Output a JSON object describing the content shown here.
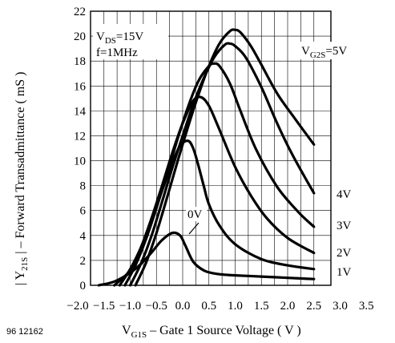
{
  "figure_number": "96 12162",
  "chart_data": {
    "type": "line",
    "xlabel": {
      "main": "V",
      "sub": "G1S",
      "rest": " – Gate 1 Source Voltage ( V )"
    },
    "ylabel": {
      "pre": "| Y",
      "sub": "21S",
      "rest": " | – Forward Transadmittance ( mS )"
    },
    "xlim": [
      -2.0,
      3.5
    ],
    "ylim": [
      0,
      22
    ],
    "xticks": [
      "−2.0",
      "−1.5",
      "−1.0",
      "−0.5",
      "0.0",
      "0.5",
      "1.0",
      "1.5",
      "2.0",
      "2.5",
      "3.0",
      "3.5"
    ],
    "yticks": [
      "0",
      "2",
      "4",
      "6",
      "8",
      "10",
      "12",
      "14",
      "16",
      "18",
      "20",
      "22"
    ],
    "xtick_values": [
      -2.0,
      -1.5,
      -1.0,
      -0.5,
      0.0,
      0.5,
      1.0,
      1.5,
      2.0,
      2.5,
      3.0,
      3.5
    ],
    "ytick_values": [
      0,
      2,
      4,
      6,
      8,
      10,
      12,
      14,
      16,
      18,
      20,
      22
    ],
    "grid": true,
    "line_color": "#000000",
    "conditions": {
      "line1": {
        "main": "V",
        "sub": "DS",
        "rest": "=15V"
      },
      "line2": "f=1MHz"
    },
    "series": [
      {
        "name": "0V",
        "x": [
          -1.6,
          -1.3,
          -1.0,
          -0.8,
          -0.6,
          -0.4,
          -0.2,
          -0.05,
          0.05,
          0.2,
          0.4,
          0.6,
          0.8,
          1.0,
          1.5,
          2.0,
          2.5
        ],
        "y": [
          0,
          0.3,
          1.0,
          1.7,
          2.6,
          3.6,
          4.2,
          4.0,
          3.2,
          1.9,
          1.2,
          0.95,
          0.85,
          0.8,
          0.7,
          0.6,
          0.5
        ]
      },
      {
        "name": "1V",
        "x": [
          -1.3,
          -1.0,
          -0.8,
          -0.6,
          -0.4,
          -0.2,
          -0.05,
          0.1,
          0.2,
          0.3,
          0.4,
          0.5,
          0.7,
          1.0,
          1.5,
          2.0,
          2.5
        ],
        "y": [
          0,
          1.2,
          2.8,
          5.0,
          7.5,
          9.8,
          11.2,
          11.6,
          11.0,
          9.6,
          8.0,
          6.5,
          4.8,
          3.3,
          2.1,
          1.6,
          1.3
        ]
      },
      {
        "name": "2V",
        "x": [
          -1.2,
          -1.0,
          -0.8,
          -0.6,
          -0.4,
          -0.2,
          0.0,
          0.2,
          0.35,
          0.5,
          0.7,
          1.0,
          1.3,
          1.6,
          2.0,
          2.5
        ],
        "y": [
          0,
          1.3,
          3.0,
          5.3,
          7.9,
          10.6,
          13.0,
          14.8,
          15.1,
          14.4,
          12.5,
          9.5,
          7.2,
          5.4,
          3.8,
          2.6
        ]
      },
      {
        "name": "3V",
        "x": [
          -1.1,
          -0.9,
          -0.7,
          -0.5,
          -0.3,
          -0.1,
          0.1,
          0.3,
          0.5,
          0.6,
          0.7,
          0.9,
          1.1,
          1.4,
          1.8,
          2.2,
          2.5
        ],
        "y": [
          0,
          1.6,
          3.7,
          6.2,
          8.9,
          11.7,
          14.3,
          16.4,
          17.6,
          17.8,
          17.6,
          16.2,
          14.0,
          10.9,
          7.9,
          5.9,
          4.7
        ]
      },
      {
        "name": "4V",
        "x": [
          -1.0,
          -0.8,
          -0.6,
          -0.4,
          -0.2,
          0.0,
          0.2,
          0.4,
          0.6,
          0.8,
          0.9,
          1.0,
          1.2,
          1.5,
          1.8,
          2.1,
          2.5
        ],
        "y": [
          0,
          1.7,
          3.9,
          6.6,
          9.4,
          12.0,
          14.5,
          16.6,
          18.3,
          19.3,
          19.4,
          19.2,
          18.3,
          15.9,
          13.0,
          10.4,
          7.4
        ]
      },
      {
        "name": "V_G2S=5V",
        "x": [
          -0.9,
          -0.7,
          -0.5,
          -0.3,
          -0.1,
          0.1,
          0.3,
          0.5,
          0.7,
          0.9,
          1.0,
          1.1,
          1.3,
          1.5,
          1.8,
          2.1,
          2.5
        ],
        "y": [
          0,
          1.8,
          4.2,
          7.0,
          9.9,
          12.7,
          15.3,
          17.6,
          19.4,
          20.4,
          20.5,
          20.3,
          19.2,
          17.7,
          15.4,
          13.6,
          11.3
        ]
      }
    ],
    "curve_labels": {
      "c0": "0V",
      "c1": "1V",
      "c2": "2V",
      "c3": "3V",
      "c4": "4V",
      "c5": {
        "main": "V",
        "sub": "G2S",
        "rest": "=5V"
      }
    }
  }
}
